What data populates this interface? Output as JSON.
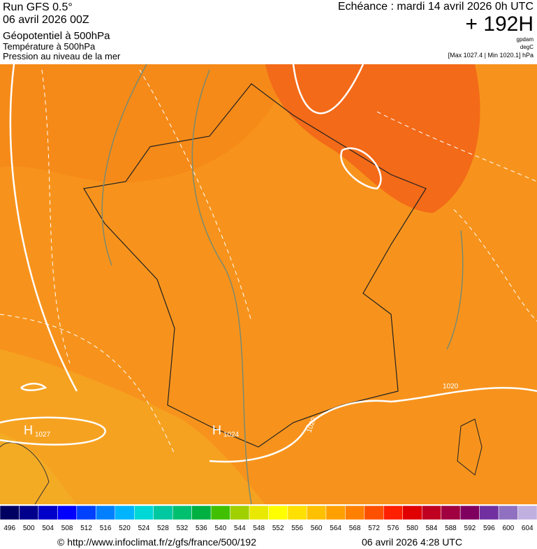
{
  "header": {
    "run": "Run GFS 0.5°",
    "run_date": "06 avril 2026 00Z",
    "field_1": "Géopotentiel à 500hPa",
    "field_2": "Température à 500hPa",
    "field_3": "Pression au niveau de la mer",
    "forecast": "Echéance : mardi 14 avril 2026 0h UTC",
    "lead": "+ 192H",
    "unit_geopotential": "gpdam",
    "unit_temperature": "degC",
    "pressure_range": "[Max 1027.4 | Min 1020.1] hPa"
  },
  "map": {
    "labels": [
      "H",
      "1027",
      "H",
      "1024",
      "1020",
      "1020"
    ]
  },
  "legend": {
    "ticks": [
      496,
      500,
      504,
      508,
      512,
      516,
      520,
      524,
      528,
      532,
      536,
      540,
      544,
      548,
      552,
      556,
      560,
      564,
      568,
      572,
      576,
      580,
      584,
      588,
      592,
      596,
      600,
      604
    ],
    "colors": [
      "#000060",
      "#00008c",
      "#0000c8",
      "#0000ff",
      "#0040ff",
      "#0080ff",
      "#00b4ff",
      "#00d8d8",
      "#00c8a0",
      "#00c070",
      "#00b040",
      "#40c000",
      "#a0d000",
      "#e8e800",
      "#ffff00",
      "#ffe000",
      "#ffc000",
      "#ffa000",
      "#ff8000",
      "#ff5000",
      "#ff2000",
      "#e00000",
      "#c00020",
      "#a00040",
      "#800060",
      "#7030a0",
      "#9070c0",
      "#c0b0e0"
    ]
  },
  "footer": {
    "url": "© http://www.infoclimat.fr/z/gfs/france/500/192",
    "generated": "06 avril 2026  4:28 UTC"
  }
}
